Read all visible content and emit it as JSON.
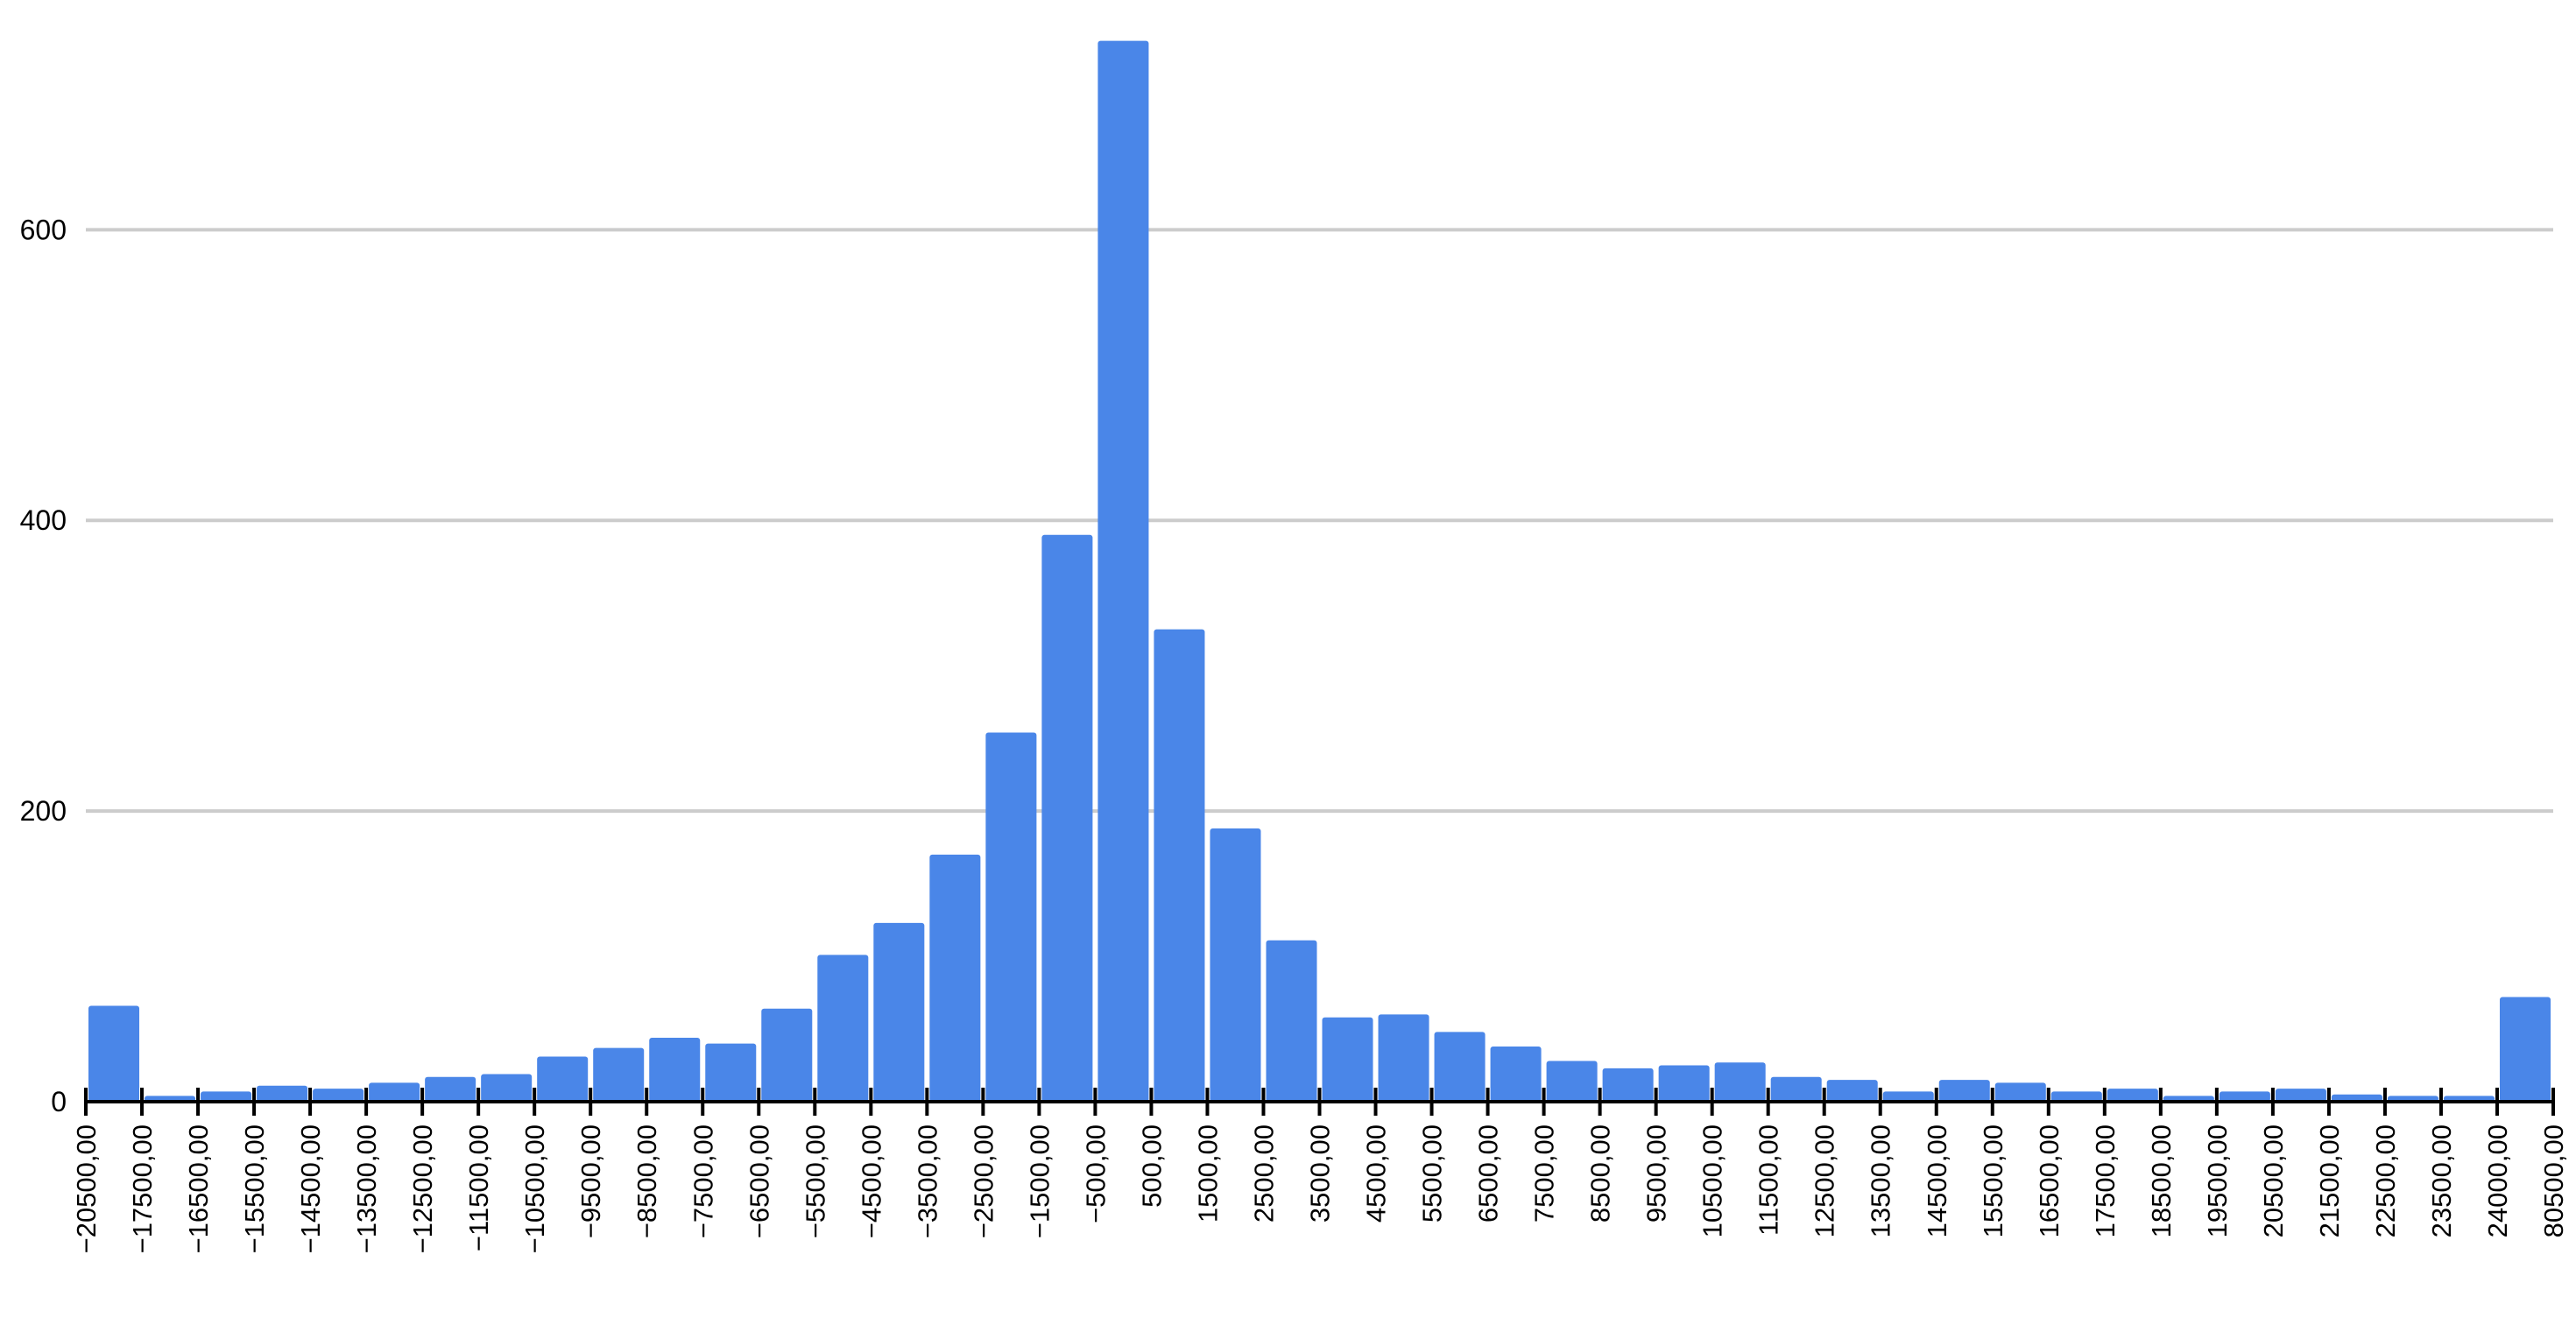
{
  "chart_data": {
    "type": "bar",
    "title": "",
    "xlabel": "",
    "ylabel": "",
    "ylim": [
      0,
      740
    ],
    "yticks": [
      0,
      200,
      400,
      600
    ],
    "grid": true,
    "legend": "none",
    "bar_color": "#4a86e8",
    "x_tick_labels": [
      "−20500,00",
      "−17500,00",
      "−16500,00",
      "−15500,00",
      "−14500,00",
      "−13500,00",
      "−12500,00",
      "−11500,00",
      "−10500,00",
      "−9500,00",
      "−8500,00",
      "−7500,00",
      "−6500,00",
      "−5500,00",
      "−4500,00",
      "−3500,00",
      "−2500,00",
      "−1500,00",
      "−500,00",
      "500,00",
      "1500,00",
      "2500,00",
      "3500,00",
      "4500,00",
      "5500,00",
      "6500,00",
      "7500,00",
      "8500,00",
      "9500,00",
      "10500,00",
      "11500,00",
      "12500,00",
      "13500,00",
      "14500,00",
      "15500,00",
      "16500,00",
      "17500,00",
      "18500,00",
      "19500,00",
      "20500,00",
      "21500,00",
      "22500,00",
      "23500,00",
      "24000,00",
      "80500,00"
    ],
    "values": [
      66,
      4,
      7,
      11,
      9,
      13,
      17,
      19,
      31,
      37,
      44,
      40,
      64,
      101,
      123,
      170,
      254,
      390,
      730,
      325,
      188,
      111,
      58,
      60,
      48,
      38,
      28,
      23,
      25,
      27,
      17,
      15,
      7,
      15,
      13,
      7,
      9,
      4,
      7,
      9,
      5,
      4,
      4,
      72
    ]
  }
}
